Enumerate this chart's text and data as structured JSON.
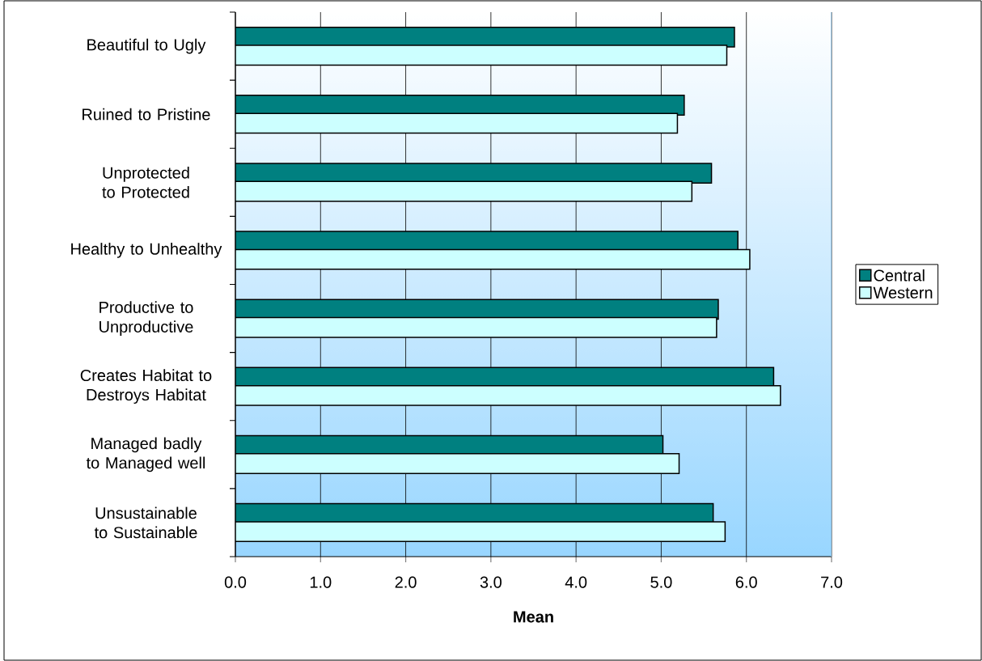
{
  "chart_data": {
    "type": "bar",
    "orientation": "horizontal",
    "xlabel": "Mean",
    "categories": [
      "Beautiful to Ugly",
      "Ruined to Pristine",
      "Unprotected to Protected",
      "Healthy to Unhealthy",
      "Productive to Unproductive",
      "Creates Habitat to Destroys Habitat",
      "Managed badly to Managed well",
      "Unsustainable to Sustainable"
    ],
    "series": [
      {
        "name": "Central",
        "color": "#008080",
        "values": [
          5.86,
          5.27,
          5.59,
          5.9,
          5.67,
          6.32,
          5.02,
          5.61
        ]
      },
      {
        "name": "Western",
        "color": "#ccffff",
        "values": [
          5.77,
          5.19,
          5.36,
          6.04,
          5.65,
          6.4,
          5.21,
          5.75
        ]
      }
    ],
    "xlim": [
      0,
      7
    ],
    "xticks": [
      {
        "value": 0,
        "label": "0.0"
      },
      {
        "value": 1,
        "label": "1.0"
      },
      {
        "value": 2,
        "label": "2.0"
      },
      {
        "value": 3,
        "label": "3.0"
      },
      {
        "value": 4,
        "label": "4.0"
      },
      {
        "value": 5,
        "label": "5.0"
      },
      {
        "value": 6,
        "label": "6.0"
      },
      {
        "value": 7,
        "label": "7.0"
      }
    ],
    "grid": "x",
    "legend": "right"
  }
}
